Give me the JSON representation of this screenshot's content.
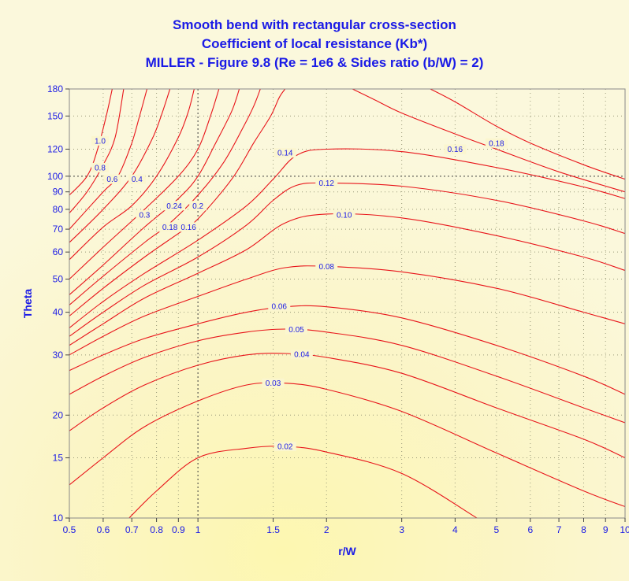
{
  "chart_data": {
    "type": "contour",
    "title": [
      "Smooth bend with rectangular cross-section",
      "Coefficient of local resistance (Kb*)",
      "MILLER - Figure 9.8 (Re = 1e6 & Sides ratio (b/W) = 2)"
    ],
    "xlabel": "r/W",
    "ylabel": "Theta",
    "xscale": "log",
    "yscale": "log",
    "xlim": [
      0.5,
      10
    ],
    "ylim": [
      10,
      180
    ],
    "xticks": [
      0.5,
      0.6,
      0.7,
      0.8,
      0.9,
      1,
      1.5,
      2,
      3,
      4,
      5,
      6,
      7,
      8,
      9,
      10
    ],
    "xtick_labels": [
      "0.5",
      "0.6",
      "0.7",
      "0.8",
      "0.9",
      "1",
      "1.5",
      "2",
      "3",
      "4",
      "5",
      "6",
      "7",
      "8",
      "9",
      "10"
    ],
    "yticks": [
      10,
      15,
      20,
      30,
      40,
      50,
      60,
      70,
      80,
      90,
      100,
      120,
      150,
      180
    ],
    "ytick_labels": [
      "10",
      "15",
      "20",
      "30",
      "40",
      "50",
      "60",
      "70",
      "80",
      "90",
      "100",
      "120",
      "150",
      "180"
    ],
    "reference_lines": {
      "x": 1,
      "y": 100
    },
    "grid": true,
    "contours": [
      {
        "level": "0.02",
        "points": [
          [
            0.69,
            10
          ],
          [
            0.8,
            12
          ],
          [
            1.0,
            15
          ],
          [
            1.3,
            16
          ],
          [
            1.6,
            16.2
          ],
          [
            2.0,
            15.6
          ],
          [
            3.0,
            13.5
          ],
          [
            4.5,
            10
          ]
        ],
        "label_at": [
          1.6,
          16.2
        ]
      },
      {
        "level": "0.03",
        "points": [
          [
            0.5,
            12.5
          ],
          [
            0.6,
            15
          ],
          [
            0.75,
            18.5
          ],
          [
            1.0,
            22
          ],
          [
            1.3,
            24.5
          ],
          [
            1.6,
            24.8
          ],
          [
            2.0,
            23.8
          ],
          [
            3.0,
            20.5
          ],
          [
            5.0,
            15.5
          ],
          [
            8.0,
            12
          ],
          [
            10.0,
            10.8
          ]
        ],
        "label_at": [
          1.5,
          24.8
        ]
      },
      {
        "level": "0.04",
        "points": [
          [
            0.5,
            18
          ],
          [
            0.6,
            21
          ],
          [
            0.75,
            24.5
          ],
          [
            1.0,
            28
          ],
          [
            1.3,
            30
          ],
          [
            1.6,
            30.3
          ],
          [
            2.0,
            29.5
          ],
          [
            3.0,
            26.5
          ],
          [
            5.0,
            21
          ],
          [
            8.0,
            17
          ],
          [
            10.0,
            15
          ]
        ],
        "label_at": [
          1.75,
          30.1
        ]
      },
      {
        "level": "0.05",
        "points": [
          [
            0.5,
            23
          ],
          [
            0.6,
            26
          ],
          [
            0.75,
            29.5
          ],
          [
            1.0,
            33
          ],
          [
            1.3,
            35
          ],
          [
            1.6,
            35.7
          ],
          [
            2.0,
            35
          ],
          [
            3.0,
            32
          ],
          [
            5.0,
            26
          ],
          [
            8.0,
            21
          ],
          [
            10.0,
            19
          ]
        ],
        "label_at": [
          1.7,
          35.6
        ]
      },
      {
        "level": "0.06",
        "points": [
          [
            0.5,
            27
          ],
          [
            0.6,
            30
          ],
          [
            0.75,
            33.5
          ],
          [
            1.0,
            37
          ],
          [
            1.3,
            40
          ],
          [
            1.6,
            41.5
          ],
          [
            2.0,
            41.5
          ],
          [
            3.0,
            38.5
          ],
          [
            5.0,
            32
          ],
          [
            8.0,
            26
          ],
          [
            10.0,
            23
          ]
        ],
        "label_at": [
          1.55,
          41.6
        ]
      },
      {
        "level": "0.08",
        "points": [
          [
            0.5,
            30
          ],
          [
            0.6,
            34
          ],
          [
            0.75,
            39
          ],
          [
            1.0,
            44.5
          ],
          [
            1.3,
            50
          ],
          [
            1.6,
            54
          ],
          [
            2.0,
            54.5
          ],
          [
            3.0,
            52.5
          ],
          [
            5.0,
            47
          ],
          [
            8.0,
            40
          ],
          [
            10.0,
            37
          ]
        ],
        "label_at": [
          2.0,
          54.5
        ]
      },
      {
        "level": "0.10",
        "points": [
          [
            0.5,
            32
          ],
          [
            0.6,
            37
          ],
          [
            0.75,
            44
          ],
          [
            1.0,
            52
          ],
          [
            1.3,
            61
          ],
          [
            1.6,
            73
          ],
          [
            2.0,
            77.5
          ],
          [
            3.0,
            75.5
          ],
          [
            5.0,
            67
          ],
          [
            8.0,
            58
          ],
          [
            10.0,
            53
          ]
        ],
        "label_at": [
          2.2,
          77
        ]
      },
      {
        "level": "0.12",
        "points": [
          [
            0.5,
            34
          ],
          [
            0.6,
            40
          ],
          [
            0.75,
            48
          ],
          [
            1.0,
            58
          ],
          [
            1.3,
            72
          ],
          [
            1.5,
            85
          ],
          [
            1.7,
            94
          ],
          [
            2.0,
            95.5
          ],
          [
            3.0,
            93.5
          ],
          [
            5.0,
            85
          ],
          [
            8.0,
            74
          ],
          [
            10.0,
            68
          ]
        ],
        "label_at": [
          2.0,
          95.5
        ]
      },
      {
        "level": "0.14",
        "points": [
          [
            0.5,
            36
          ],
          [
            0.6,
            43
          ],
          [
            0.75,
            52
          ],
          [
            1.0,
            65
          ],
          [
            1.3,
            82
          ],
          [
            1.5,
            98
          ],
          [
            1.7,
            115
          ],
          [
            2.0,
            120
          ],
          [
            3.0,
            118
          ],
          [
            5.0,
            106
          ],
          [
            8.0,
            93
          ],
          [
            10.0,
            86
          ]
        ],
        "label_at": [
          1.6,
          117
        ]
      },
      {
        "level": "0.16",
        "points": [
          [
            0.5,
            39
          ],
          [
            0.6,
            47
          ],
          [
            0.75,
            58
          ],
          [
            0.9,
            68
          ],
          [
            1.0,
            75
          ],
          [
            1.2,
            98
          ],
          [
            1.35,
            125
          ],
          [
            1.48,
            150
          ],
          [
            1.55,
            170
          ],
          [
            1.6,
            180
          ]
        ],
        "label_at": [
          0.95,
          71
        ]
      },
      {
        "level": "0.16",
        "points": [
          [
            2.3,
            180
          ],
          [
            2.6,
            167
          ],
          [
            3.0,
            153
          ],
          [
            4.0,
            133
          ],
          [
            5.0,
            120
          ],
          [
            7.0,
            103
          ],
          [
            10.0,
            90
          ]
        ],
        "label_at": [
          4.0,
          120
        ]
      },
      {
        "level": "0.18",
        "points": [
          [
            0.5,
            42
          ],
          [
            0.6,
            51
          ],
          [
            0.75,
            64
          ],
          [
            0.85,
            72
          ],
          [
            1.0,
            88
          ],
          [
            1.15,
            110
          ],
          [
            1.28,
            140
          ],
          [
            1.35,
            160
          ],
          [
            1.4,
            180
          ]
        ],
        "label_at": [
          0.86,
          71
        ]
      },
      {
        "level": "0.18",
        "points": [
          [
            3.5,
            180
          ],
          [
            4.0,
            165
          ],
          [
            5.0,
            140
          ],
          [
            6.0,
            125
          ],
          [
            8.0,
            108
          ],
          [
            10.0,
            98
          ]
        ],
        "label_at": [
          5.0,
          125
        ]
      },
      {
        "level": "0.2",
        "points": [
          [
            0.5,
            45
          ],
          [
            0.6,
            55
          ],
          [
            0.75,
            71
          ],
          [
            0.9,
            86
          ],
          [
            1.0,
            100
          ],
          [
            1.1,
            125
          ],
          [
            1.2,
            155
          ],
          [
            1.25,
            180
          ]
        ],
        "label_at": [
          1.0,
          82
        ]
      },
      {
        "level": "0.24",
        "points": [
          [
            0.5,
            50
          ],
          [
            0.6,
            62
          ],
          [
            0.75,
            80
          ],
          [
            0.9,
            100
          ],
          [
            1.0,
            120
          ],
          [
            1.07,
            150
          ],
          [
            1.12,
            180
          ]
        ],
        "label_at": [
          0.88,
          82
        ]
      },
      {
        "level": "0.3",
        "points": [
          [
            0.5,
            57
          ],
          [
            0.6,
            71
          ],
          [
            0.7,
            82
          ],
          [
            0.8,
            100
          ],
          [
            0.9,
            130
          ],
          [
            0.95,
            155
          ],
          [
            0.98,
            180
          ]
        ],
        "label_at": [
          0.75,
          77
        ]
      },
      {
        "level": "0.4",
        "points": [
          [
            0.5,
            64
          ],
          [
            0.6,
            80
          ],
          [
            0.7,
            100
          ],
          [
            0.78,
            128
          ],
          [
            0.82,
            150
          ],
          [
            0.86,
            180
          ]
        ],
        "label_at": [
          0.72,
          98
        ]
      },
      {
        "level": "0.6",
        "points": [
          [
            0.5,
            70
          ],
          [
            0.6,
            90
          ],
          [
            0.65,
            100
          ],
          [
            0.7,
            125
          ],
          [
            0.73,
            150
          ],
          [
            0.76,
            180
          ]
        ],
        "label_at": [
          0.63,
          98
        ]
      },
      {
        "level": "0.8",
        "points": [
          [
            0.5,
            78
          ],
          [
            0.55,
            90
          ],
          [
            0.6,
            108
          ],
          [
            0.64,
            130
          ],
          [
            0.67,
            180
          ]
        ],
        "label_at": [
          0.59,
          106
        ]
      },
      {
        "level": "1.0",
        "points": [
          [
            0.5,
            88
          ],
          [
            0.55,
            100
          ],
          [
            0.58,
            118
          ],
          [
            0.61,
            150
          ],
          [
            0.63,
            180
          ]
        ],
        "label_at": [
          0.59,
          127
        ]
      }
    ]
  }
}
